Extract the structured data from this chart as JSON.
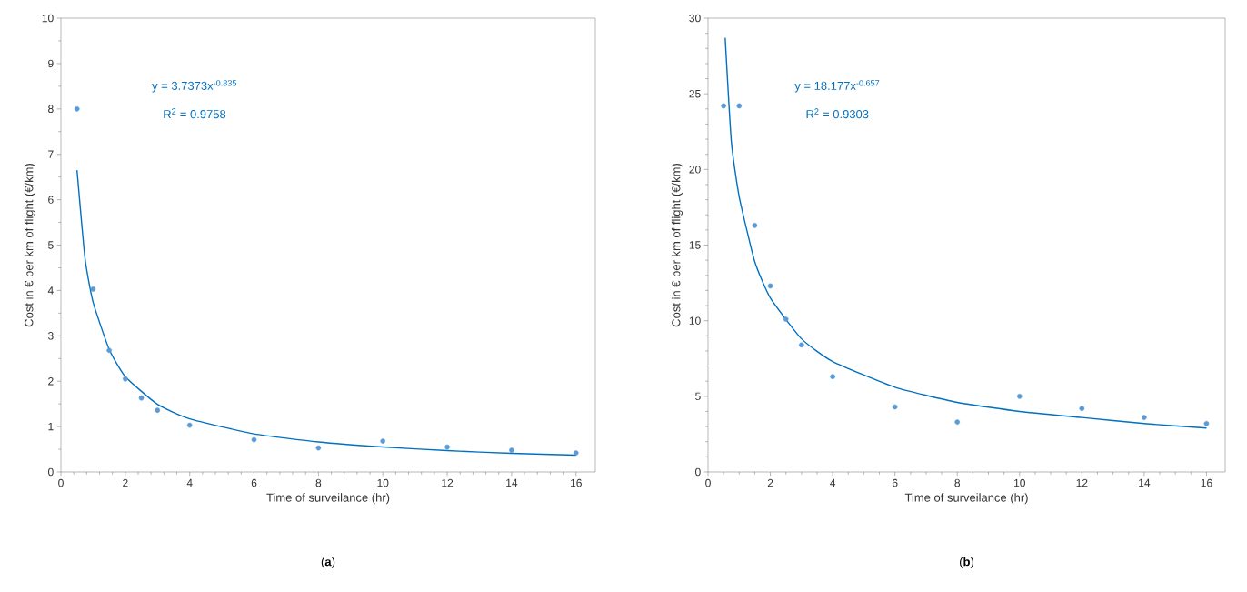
{
  "chart_data": [
    {
      "type": "scatter",
      "xlabel": "Time of surveilance (hr)",
      "ylabel": "Cost in € per km of flight (€/km)",
      "xlim": [
        0,
        16.6
      ],
      "ylim": [
        0,
        10
      ],
      "xticks": [
        0,
        2,
        4,
        6,
        8,
        10,
        12,
        14,
        16
      ],
      "yticks": [
        0,
        1,
        2,
        3,
        4,
        5,
        6,
        7,
        8,
        9,
        10
      ],
      "series": [
        {
          "marker": "circle",
          "color": "#5b9bd5",
          "x": [
            0.5,
            1,
            1.5,
            2,
            2.5,
            3,
            4,
            6,
            8,
            10,
            12,
            14,
            16
          ],
          "values": [
            8.0,
            4.03,
            2.68,
            2.05,
            1.63,
            1.36,
            1.03,
            0.71,
            0.53,
            0.68,
            0.55,
            0.48,
            0.42
          ]
        },
        {
          "type": "line",
          "marker": "none",
          "color": "#0070c0",
          "x": [
            0.5,
            0.75,
            1,
            1.5,
            2,
            3,
            4,
            6,
            8,
            10,
            12,
            14,
            16
          ],
          "values": [
            6.65,
            4.7,
            3.74,
            2.7,
            2.1,
            1.49,
            1.17,
            0.84,
            0.66,
            0.55,
            0.47,
            0.41,
            0.37
          ]
        }
      ],
      "annotations": [
        "y = 3.7373x$^{-0.835}$",
        "R$^{2}$ = 0.9758",
        "(**a**)"
      ]
    },
    {
      "type": "scatter",
      "xlabel": "Time of surveilance (hr)",
      "ylabel": "Cost in € per km of flight (€/km)",
      "xlim": [
        0,
        16.6
      ],
      "ylim": [
        0,
        30
      ],
      "xticks": [
        0,
        2,
        4,
        6,
        8,
        10,
        12,
        14,
        16
      ],
      "yticks": [
        0,
        5,
        10,
        15,
        20,
        25,
        30
      ],
      "series": [
        {
          "marker": "circle",
          "color": "#5b9bd5",
          "x": [
            0.5,
            1,
            1.5,
            2,
            2.5,
            3,
            4,
            6,
            8,
            10,
            12,
            14,
            16
          ],
          "values": [
            24.2,
            24.2,
            16.3,
            12.3,
            10.1,
            8.4,
            6.3,
            4.3,
            3.3,
            5.0,
            4.2,
            3.6,
            3.2
          ]
        },
        {
          "type": "line",
          "marker": "none",
          "color": "#0070c0",
          "x": [
            0.55,
            0.75,
            1,
            1.5,
            2,
            3,
            4,
            6,
            8,
            10,
            12,
            14,
            16
          ],
          "values": [
            28.7,
            21.8,
            18.2,
            13.9,
            11.5,
            8.8,
            7.3,
            5.6,
            4.6,
            4.0,
            3.6,
            3.2,
            2.9
          ]
        }
      ],
      "annotations": [
        "y = 18.177x$^{-0.657}$",
        "R$^{2}$ = 0.9303",
        "(**b**)"
      ]
    }
  ]
}
